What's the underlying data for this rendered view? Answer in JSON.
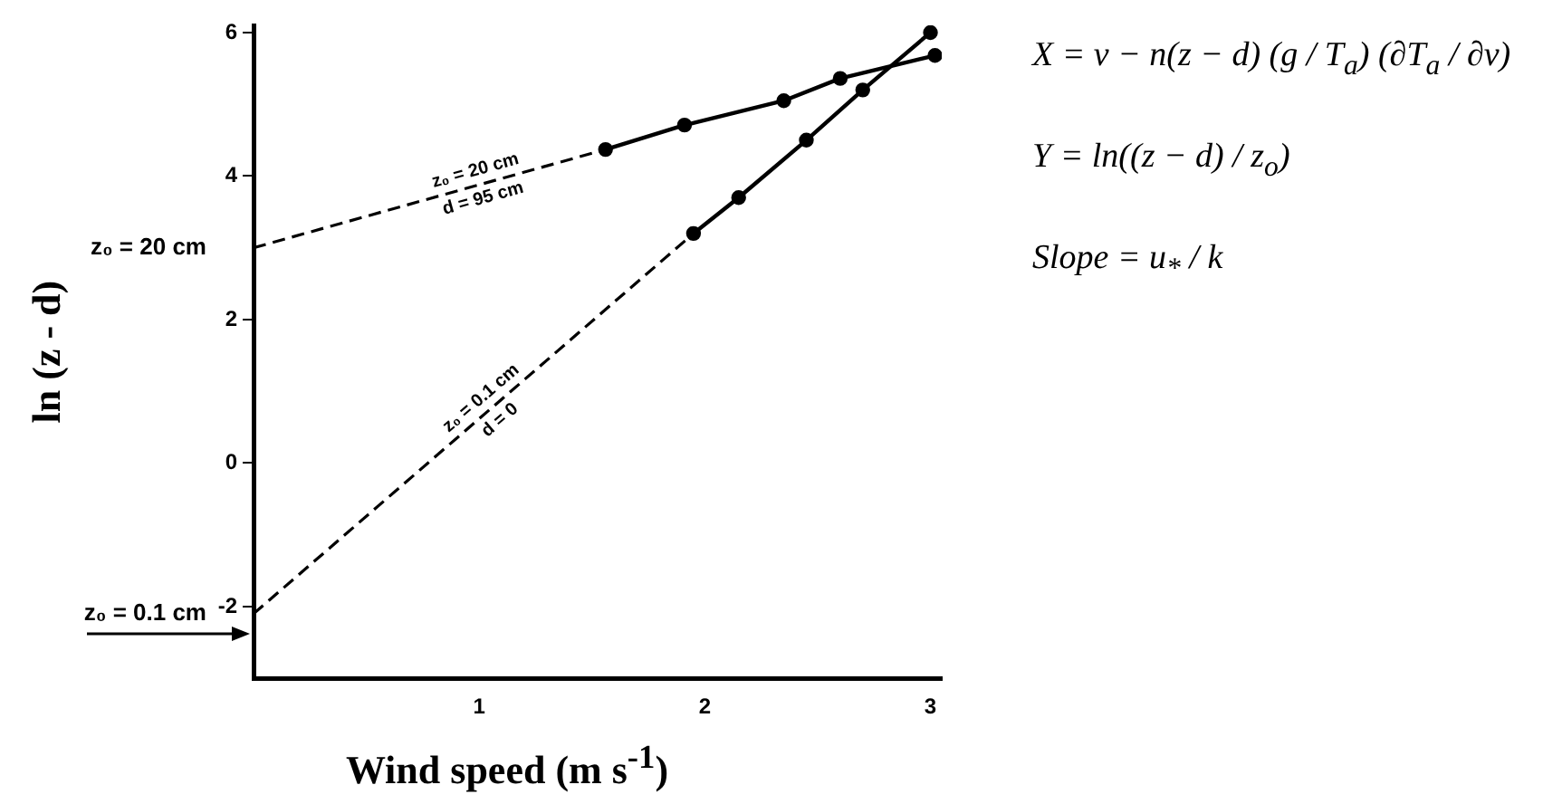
{
  "chart_data": {
    "type": "line",
    "xlabel": "Wind speed (m s$^{-1}$)",
    "ylabel": "ln (z - d)",
    "xlim": [
      0,
      3.05
    ],
    "xticks": [
      1,
      2,
      3
    ],
    "ylim": [
      -3,
      6.1
    ],
    "yticks": [
      -2,
      0,
      2,
      4,
      6
    ],
    "grid": false,
    "legend": false,
    "series": [
      {
        "color": "#000000",
        "x": [
          1.56,
          1.91,
          2.35,
          2.6,
          3.02
        ],
        "values": [
          4.37,
          4.71,
          5.05,
          5.36,
          5.68
        ],
        "marker": "circle",
        "line_style": "solid"
      },
      {
        "color": "#000000",
        "x": [
          0,
          1.56
        ],
        "values": [
          3.0,
          4.37
        ],
        "marker": "none",
        "line_style": "dashed"
      },
      {
        "color": "#000000",
        "x": [
          1.95,
          2.15,
          2.45,
          2.7,
          3.0
        ],
        "values": [
          3.2,
          3.7,
          4.5,
          5.2,
          6.0
        ],
        "marker": "circle",
        "line_style": "solid"
      },
      {
        "color": "#000000",
        "x": [
          0,
          1.95
        ],
        "values": [
          -2.1,
          3.2
        ],
        "marker": "none",
        "line_style": "dashed"
      }
    ],
    "annotations": [
      {
        "text": "z₀ = 20 cm",
        "x": 0,
        "y": 3.0
      },
      {
        "text": "z₀ = 0.1 cm",
        "x": 0,
        "y": -2.1
      },
      {
        "text": "z₀ = 20 cm",
        "x": 1.0,
        "y": 3.88
      },
      {
        "text": "d = 95 cm",
        "x": 1.0,
        "y": 3.88
      },
      {
        "text": "z₀ = 0.1 cm",
        "x": 1.05,
        "y": 0.75
      },
      {
        "text": "d = 0",
        "x": 1.05,
        "y": 0.75
      },
      "X = v − n(z − d) (g / T$_{a}$) (∂T$_{a}$ / ∂v)",
      "Y = ln((z − d) / z$_{o}$)",
      "Slope = u$_{*}$ / k"
    ]
  }
}
